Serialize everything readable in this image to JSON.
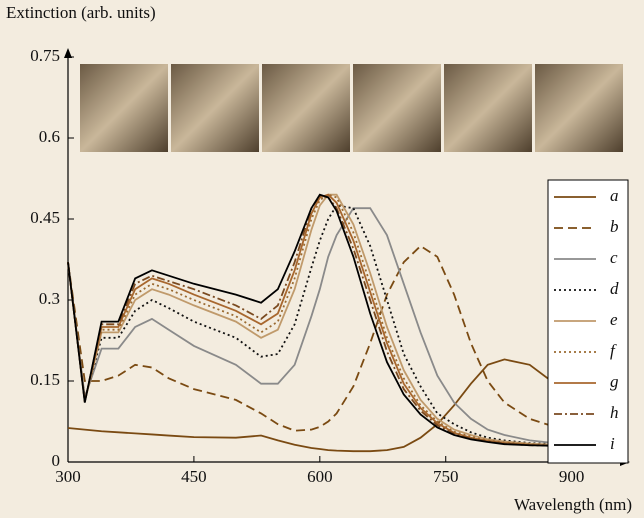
{
  "chart_data": {
    "type": "line",
    "ylabel": "Extinction (arb. units)",
    "xlabel": "Wavelength (nm)",
    "xlim": [
      300,
      960
    ],
    "xticks": [
      300,
      450,
      600,
      750,
      900
    ],
    "ylim": [
      0,
      0.75
    ],
    "yticks": [
      0,
      0.15,
      0.3,
      0.45,
      0.6,
      0.75
    ],
    "x": [
      300,
      320,
      340,
      360,
      380,
      400,
      420,
      450,
      500,
      530,
      550,
      570,
      590,
      600,
      610,
      620,
      640,
      660,
      680,
      700,
      720,
      740,
      760,
      780,
      800,
      820,
      850,
      880,
      900,
      930,
      950
    ],
    "series": [
      {
        "name": "a",
        "color": "#7a4a12",
        "dash": "solid",
        "values": [
          0.063,
          0.06,
          0.057,
          0.055,
          0.053,
          0.051,
          0.049,
          0.046,
          0.045,
          0.049,
          0.04,
          0.032,
          0.026,
          0.024,
          0.022,
          0.021,
          0.02,
          0.02,
          0.022,
          0.028,
          0.045,
          0.07,
          0.105,
          0.145,
          0.18,
          0.19,
          0.18,
          0.145,
          0.115,
          0.08,
          0.065
        ]
      },
      {
        "name": "b",
        "color": "#7a4a12",
        "dash": "dashed",
        "values": [
          0.37,
          0.15,
          0.15,
          0.16,
          0.18,
          0.175,
          0.155,
          0.135,
          0.115,
          0.09,
          0.07,
          0.058,
          0.06,
          0.065,
          0.075,
          0.09,
          0.14,
          0.22,
          0.31,
          0.37,
          0.4,
          0.38,
          0.31,
          0.22,
          0.15,
          0.11,
          0.08,
          0.065,
          0.06,
          0.05,
          0.045
        ]
      },
      {
        "name": "c",
        "color": "#8a8a8a",
        "dash": "solid",
        "values": [
          0.37,
          0.12,
          0.21,
          0.21,
          0.25,
          0.265,
          0.245,
          0.215,
          0.18,
          0.145,
          0.145,
          0.18,
          0.27,
          0.32,
          0.38,
          0.42,
          0.47,
          0.47,
          0.42,
          0.33,
          0.24,
          0.16,
          0.11,
          0.08,
          0.06,
          0.05,
          0.04,
          0.035,
          0.035,
          0.033,
          0.033
        ]
      },
      {
        "name": "d",
        "color": "#111111",
        "dash": "dotted",
        "values": [
          0.37,
          0.115,
          0.23,
          0.23,
          0.28,
          0.3,
          0.285,
          0.26,
          0.23,
          0.195,
          0.2,
          0.255,
          0.36,
          0.41,
          0.45,
          0.475,
          0.47,
          0.4,
          0.3,
          0.2,
          0.14,
          0.09,
          0.07,
          0.055,
          0.045,
          0.04,
          0.035,
          0.033,
          0.032,
          0.032,
          0.032
        ]
      },
      {
        "name": "e",
        "color": "#c09a6b",
        "dash": "solid",
        "values": [
          0.37,
          0.112,
          0.24,
          0.24,
          0.3,
          0.32,
          0.31,
          0.29,
          0.26,
          0.23,
          0.245,
          0.32,
          0.43,
          0.475,
          0.495,
          0.495,
          0.44,
          0.35,
          0.25,
          0.17,
          0.115,
          0.08,
          0.06,
          0.05,
          0.042,
          0.038,
          0.034,
          0.032,
          0.031,
          0.031,
          0.031
        ]
      },
      {
        "name": "f",
        "color": "#9a6a30",
        "dash": "dotted",
        "values": [
          0.37,
          0.112,
          0.245,
          0.245,
          0.31,
          0.33,
          0.32,
          0.3,
          0.27,
          0.24,
          0.26,
          0.34,
          0.45,
          0.485,
          0.495,
          0.49,
          0.425,
          0.33,
          0.23,
          0.155,
          0.105,
          0.075,
          0.056,
          0.047,
          0.04,
          0.036,
          0.033,
          0.031,
          0.03,
          0.03,
          0.03
        ]
      },
      {
        "name": "g",
        "color": "#a8672e",
        "dash": "solid",
        "values": [
          0.37,
          0.112,
          0.25,
          0.25,
          0.32,
          0.34,
          0.33,
          0.31,
          0.28,
          0.255,
          0.275,
          0.355,
          0.46,
          0.49,
          0.495,
          0.48,
          0.41,
          0.315,
          0.22,
          0.145,
          0.1,
          0.072,
          0.054,
          0.045,
          0.039,
          0.035,
          0.032,
          0.03,
          0.03,
          0.03,
          0.03
        ]
      },
      {
        "name": "h",
        "color": "#7a4a20",
        "dash": "dashdot",
        "values": [
          0.37,
          0.112,
          0.255,
          0.255,
          0.33,
          0.345,
          0.335,
          0.32,
          0.29,
          0.265,
          0.29,
          0.37,
          0.47,
          0.493,
          0.49,
          0.47,
          0.395,
          0.3,
          0.205,
          0.135,
          0.095,
          0.068,
          0.052,
          0.043,
          0.038,
          0.034,
          0.031,
          0.03,
          0.03,
          0.03,
          0.03
        ]
      },
      {
        "name": "i",
        "color": "#000000",
        "dash": "solid",
        "values": [
          0.37,
          0.11,
          0.26,
          0.26,
          0.34,
          0.355,
          0.345,
          0.33,
          0.31,
          0.295,
          0.32,
          0.39,
          0.47,
          0.495,
          0.49,
          0.465,
          0.38,
          0.275,
          0.185,
          0.125,
          0.088,
          0.064,
          0.05,
          0.042,
          0.037,
          0.033,
          0.031,
          0.03,
          0.03,
          0.03,
          0.03
        ]
      }
    ]
  }
}
